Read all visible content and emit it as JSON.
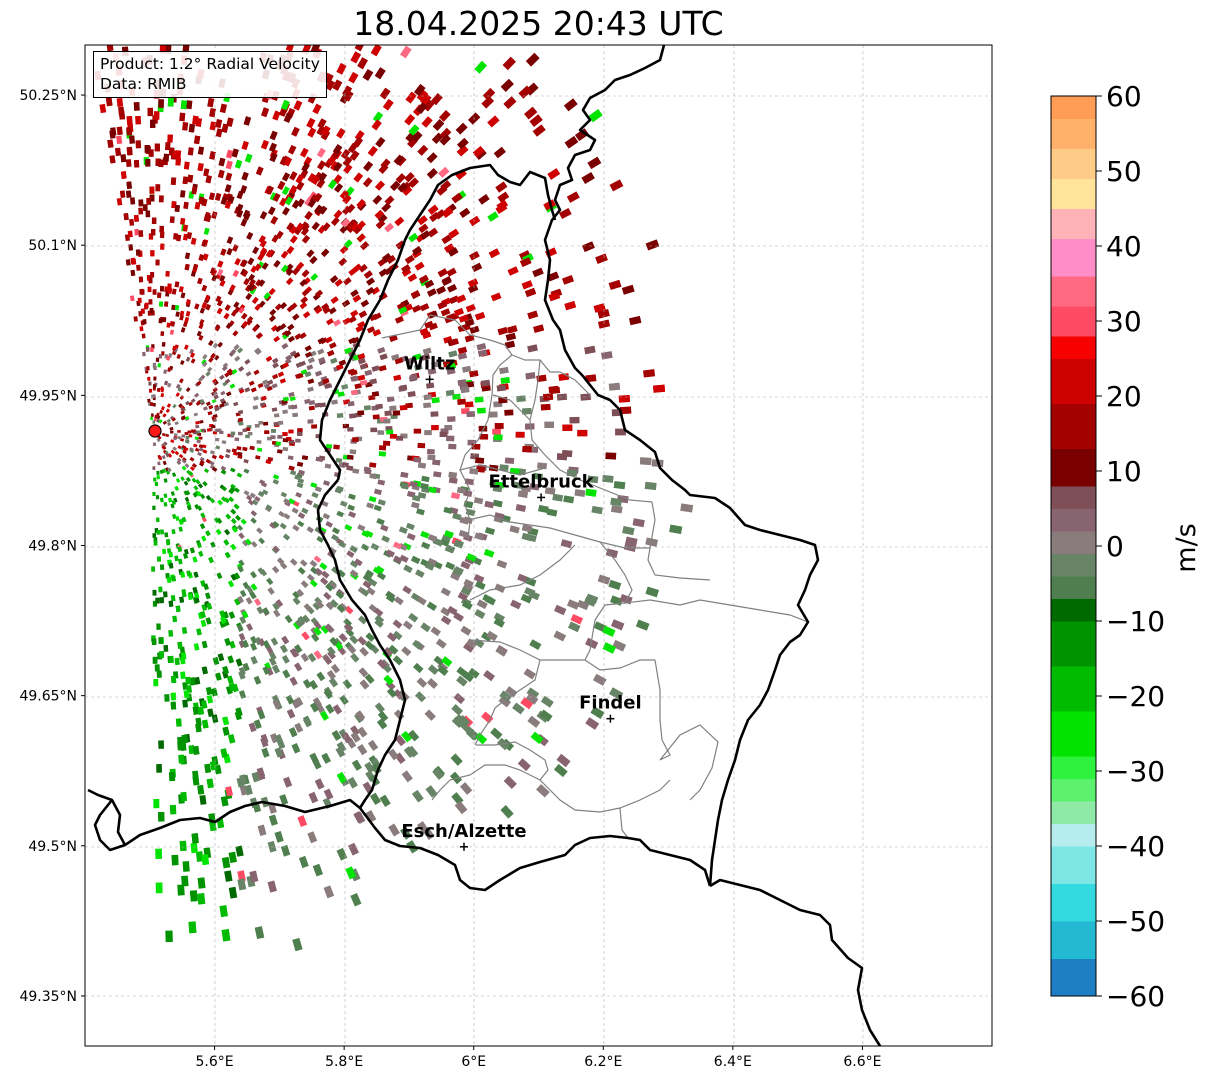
{
  "figure": {
    "title": "18.04.2025 20:43 UTC"
  },
  "info_box": {
    "product_line": "Product: 1.2° Radial Velocity",
    "data_line": "Data: RMIB"
  },
  "map": {
    "extent": {
      "lon": [
        5.4,
        6.8
      ],
      "lat": [
        49.3,
        50.3
      ]
    },
    "lat_ticks": [
      {
        "value": 50.25,
        "label": "50.25°N"
      },
      {
        "value": 50.1,
        "label": "50.1°N"
      },
      {
        "value": 49.95,
        "label": "49.95°N"
      },
      {
        "value": 49.8,
        "label": "49.8°N"
      },
      {
        "value": 49.65,
        "label": "49.65°N"
      },
      {
        "value": 49.5,
        "label": "49.5°N"
      },
      {
        "value": 49.35,
        "label": "49.35°N"
      }
    ],
    "lon_ticks": [
      {
        "value": 5.6,
        "label": "5.6°E"
      },
      {
        "value": 5.8,
        "label": "5.8°E"
      },
      {
        "value": 6.0,
        "label": "6°E"
      },
      {
        "value": 6.2,
        "label": "6.2°E"
      },
      {
        "value": 6.4,
        "label": "6.4°E"
      },
      {
        "value": 6.6,
        "label": "6.6°E"
      }
    ],
    "radar_site": {
      "lon": 5.505,
      "lat": 49.914
    },
    "cities": [
      {
        "name": "Wiltz",
        "lon": 5.932,
        "lat": 49.966
      },
      {
        "name": "Ettelbruck",
        "lon": 6.104,
        "lat": 49.848
      },
      {
        "name": "Findel",
        "lon": 6.211,
        "lat": 49.627
      },
      {
        "name": "Esch/Alzette",
        "lon": 5.985,
        "lat": 49.499
      }
    ]
  },
  "colorbar": {
    "unit_label": "m/s",
    "min": -60,
    "max": 60,
    "ticks": [
      {
        "value": 60,
        "label": "60"
      },
      {
        "value": 50,
        "label": "50"
      },
      {
        "value": 40,
        "label": "40"
      },
      {
        "value": 30,
        "label": "30"
      },
      {
        "value": 20,
        "label": "20"
      },
      {
        "value": 10,
        "label": "10"
      },
      {
        "value": 0,
        "label": "0"
      },
      {
        "value": -10,
        "label": "−10"
      },
      {
        "value": -20,
        "label": "−20"
      },
      {
        "value": -30,
        "label": "−30"
      },
      {
        "value": -40,
        "label": "−40"
      },
      {
        "value": -50,
        "label": "−50"
      },
      {
        "value": -60,
        "label": "−60"
      }
    ],
    "segments": [
      {
        "from": -60,
        "to": -55,
        "color": "#1f7fc4"
      },
      {
        "from": -55,
        "to": -50,
        "color": "#23b9d2"
      },
      {
        "from": -50,
        "to": -45,
        "color": "#33dbe0"
      },
      {
        "from": -45,
        "to": -40,
        "color": "#7fe6e6"
      },
      {
        "from": -40,
        "to": -37,
        "color": "#b6ecee"
      },
      {
        "from": -37,
        "to": -34,
        "color": "#8feaa7"
      },
      {
        "from": -34,
        "to": -31,
        "color": "#5cf26f"
      },
      {
        "from": -31,
        "to": -28,
        "color": "#2ef23e"
      },
      {
        "from": -28,
        "to": -22,
        "color": "#00e400"
      },
      {
        "from": -22,
        "to": -16,
        "color": "#00bb00"
      },
      {
        "from": -16,
        "to": -10,
        "color": "#009300"
      },
      {
        "from": -10,
        "to": -7,
        "color": "#006a00"
      },
      {
        "from": -7,
        "to": -4,
        "color": "#4f7f4f"
      },
      {
        "from": -4,
        "to": -1,
        "color": "#678467"
      },
      {
        "from": -1,
        "to": 2,
        "color": "#8a7c7c"
      },
      {
        "from": 2,
        "to": 5,
        "color": "#886470"
      },
      {
        "from": 5,
        "to": 8,
        "color": "#7e4f57"
      },
      {
        "from": 8,
        "to": 13,
        "color": "#7a0000"
      },
      {
        "from": 13,
        "to": 19,
        "color": "#a40000"
      },
      {
        "from": 19,
        "to": 25,
        "color": "#cf0000"
      },
      {
        "from": 25,
        "to": 28,
        "color": "#f70000"
      },
      {
        "from": 28,
        "to": 32,
        "color": "#ff4a63"
      },
      {
        "from": 32,
        "to": 36,
        "color": "#ff6a82"
      },
      {
        "from": 36,
        "to": 41,
        "color": "#ff8ec8"
      },
      {
        "from": 41,
        "to": 45,
        "color": "#ffb3b8"
      },
      {
        "from": 45,
        "to": 49,
        "color": "#ffe49a"
      },
      {
        "from": 49,
        "to": 53,
        "color": "#ffcc88"
      },
      {
        "from": 53,
        "to": 57,
        "color": "#ffb06a"
      },
      {
        "from": 57,
        "to": 60,
        "color": "#ff9d57"
      }
    ]
  }
}
